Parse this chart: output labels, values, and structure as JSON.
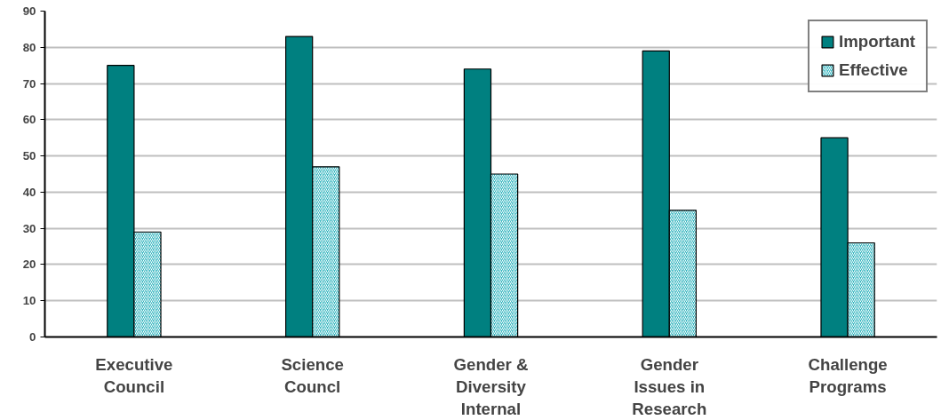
{
  "chart_data": {
    "type": "bar",
    "categories": [
      "Executive\nCouncil",
      "Science\nCouncl",
      "Gender &\nDiversity\nInternal",
      "Gender\nIssues in\nResearch",
      "Challenge\nPrograms"
    ],
    "series": [
      {
        "name": "Important",
        "color": "#008080",
        "values": [
          75,
          83,
          74,
          79,
          55
        ]
      },
      {
        "name": "Effective",
        "color": "#33b5bf",
        "values": [
          29,
          47,
          45,
          35,
          26
        ]
      }
    ],
    "ylim": [
      0,
      90
    ],
    "yticks": [
      0,
      10,
      20,
      30,
      40,
      50,
      60,
      70,
      80,
      90
    ],
    "grid": "y",
    "legend": "top right"
  }
}
